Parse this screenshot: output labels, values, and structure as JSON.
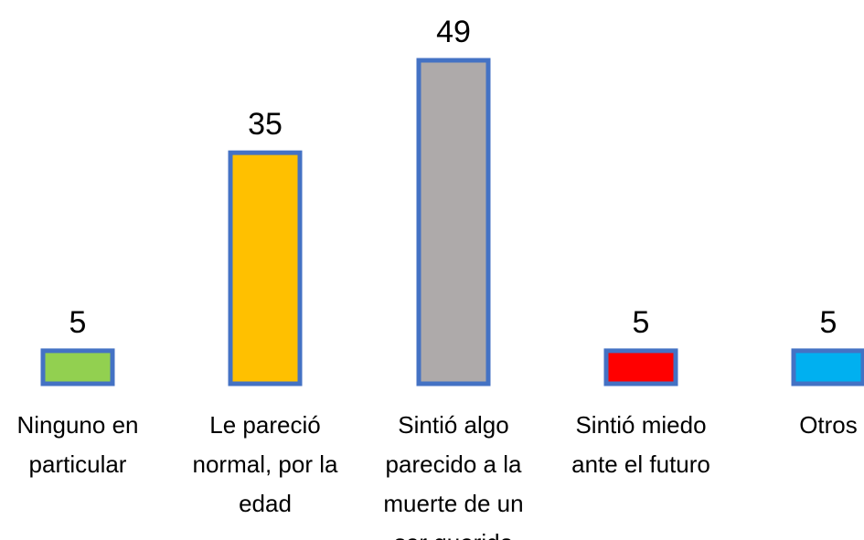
{
  "chart_data": {
    "type": "bar",
    "categories": [
      "Ninguno en particular",
      "Le pareció normal, por la edad",
      "Sintió algo parecido a la muerte de un ser querido",
      "Sintió miedo ante el futuro",
      "Otros"
    ],
    "values": [
      5,
      35,
      49,
      5,
      5
    ],
    "colors": [
      "#92d050",
      "#ffc000",
      "#aeaaaa",
      "#ff0000",
      "#00b0f0"
    ],
    "edgecolor": "#4472c4"
  }
}
